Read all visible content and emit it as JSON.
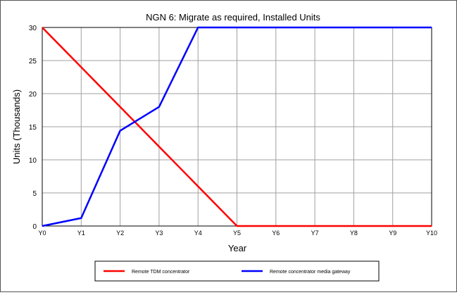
{
  "chart_data": {
    "type": "line",
    "title": "NGN 6: Migrate as required, Installed Units",
    "xlabel": "Year",
    "ylabel": "Units  (Thousands)",
    "categories": [
      "Y0",
      "Y1",
      "Y2",
      "Y3",
      "Y4",
      "Y5",
      "Y6",
      "Y7",
      "Y8",
      "Y9",
      "Y10"
    ],
    "ylim": [
      0,
      30
    ],
    "yticks": [
      0,
      5,
      10,
      15,
      20,
      25,
      30
    ],
    "grid": true,
    "legend_position": "bottom",
    "series": [
      {
        "name": "Remote TDM concentrator",
        "color": "#ff0000",
        "values": [
          30,
          24,
          18,
          12,
          6,
          0,
          0,
          0,
          0,
          0,
          0
        ]
      },
      {
        "name": "Remote concentrator media gateway",
        "color": "#0000ff",
        "values": [
          0,
          1.2,
          14.4,
          18,
          30,
          30,
          30,
          30,
          30,
          30,
          30
        ]
      }
    ]
  }
}
